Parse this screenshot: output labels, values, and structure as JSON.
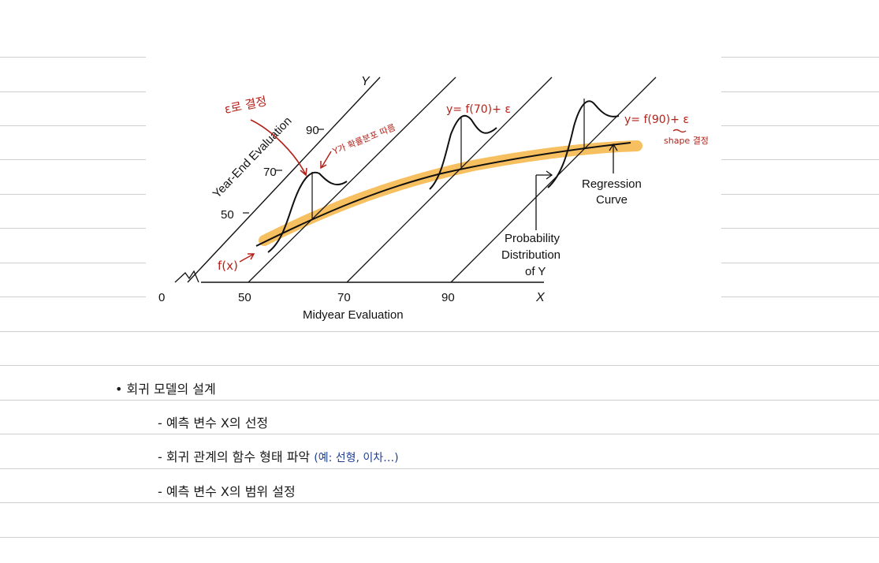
{
  "figure": {
    "y_axis_letter": "Y",
    "x_axis_letter": "X",
    "y_axis_label": "Year-End Evaluation",
    "x_axis_label": "Midyear Evaluation",
    "origin_label": "0",
    "x_ticks": [
      "50",
      "70",
      "90"
    ],
    "y_ticks": [
      "50",
      "70",
      "90"
    ],
    "regression_label": [
      "Regression",
      "Curve"
    ],
    "prob_label": [
      "Probability",
      "Distribution",
      "of Y"
    ]
  },
  "handwriting": {
    "epsilon_decides": "ε로 결정",
    "y_follows_prob": "Y가 확률분포 따름",
    "fx": "f(x)",
    "eq_mid": "y= f(70)+ ε",
    "eq_right": "y= f(90)+ ε",
    "shape_decides": "shape 결정"
  },
  "notes": {
    "bullet": "•",
    "heading": "회귀 모델의 설계",
    "items": [
      {
        "dash": "-",
        "text": "예측 변수 X의 선정",
        "paren": ""
      },
      {
        "dash": "-",
        "text": "회귀 관계의 함수 형태 파악",
        "paren": "(예: 선형, 이차…)"
      },
      {
        "dash": "-",
        "text": "예측 변수 X의  범위 설정",
        "paren": ""
      }
    ]
  },
  "colors": {
    "highlight": "#f5b443",
    "handwriting": "#b3221a",
    "paren_text": "#1f3f8f"
  }
}
